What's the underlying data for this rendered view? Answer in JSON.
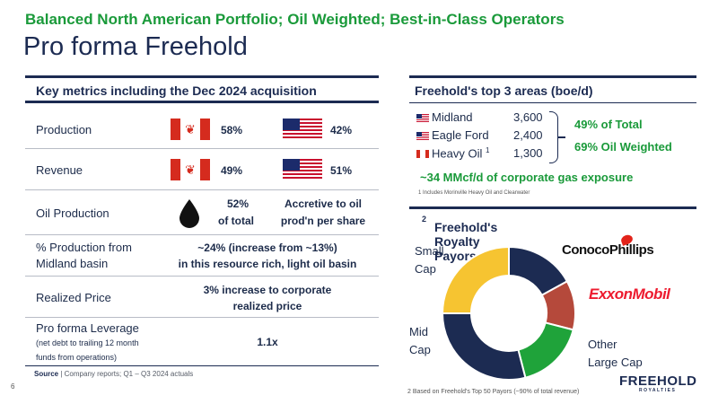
{
  "header": {
    "subtitle": "Balanced North American Portfolio; Oil Weighted; Best-in-Class Operators",
    "title": "Pro forma Freehold"
  },
  "key_metrics": {
    "heading": "Key metrics including the Dec 2024 acquisition",
    "rows": [
      {
        "label": "Production",
        "canada": "58%",
        "us": "42%"
      },
      {
        "label": "Revenue",
        "canada": "49%",
        "us": "51%"
      },
      {
        "label": "Oil Production",
        "value_line1": "52%",
        "value_line2": "of total",
        "note_line1": "Accretive to oil",
        "note_line2": "prod'n per share"
      },
      {
        "label_line1": "% Production from",
        "label_line2": "Midland basin",
        "value_line1": "~24% (increase from ~13%)",
        "value_line2": "in this resource rich, light oil basin"
      },
      {
        "label": "Realized Price",
        "value_line1": "3% increase to corporate",
        "value_line2": "realized price"
      },
      {
        "label_line1": "Pro forma Leverage",
        "label_small1": "(net debt to trailing 12 month",
        "label_small2": "funds from operations)",
        "value": "1.1x"
      }
    ],
    "source_bold": "Source",
    "source_text": " | Company reports; Q1 – Q3 2024 actuals"
  },
  "page_number": "6",
  "top_areas": {
    "heading": "Freehold's top 3 areas (boe/d)",
    "areas": [
      {
        "name": "Midland",
        "value": "3,600",
        "flag": "us"
      },
      {
        "name": "Eagle Ford",
        "value": "2,400",
        "flag": "us"
      },
      {
        "name": "Heavy Oil",
        "sup": "1",
        "value": "1,300",
        "flag": "ca"
      }
    ],
    "pct_total": "49% of Total",
    "oil_weighted": "69% Oil Weighted",
    "gas_exposure": "~34 MMcf/d of corporate gas exposure",
    "footnote": "1 Includes Morinville Heavy Oil and Clearwater"
  },
  "royalty_payors": {
    "heading": "Freehold's Royalty Payors",
    "heading_sup": "2",
    "labels": {
      "small_cap_1": "Small",
      "small_cap_2": "Cap",
      "mid_cap_1": "Mid",
      "mid_cap_2": "Cap",
      "other_1": "Other",
      "other_2": "Large Cap"
    },
    "logos": {
      "conocophillips": "ConocoPhillips",
      "exxonmobil": "ExxonMobil",
      "freehold": "FREEHOLD",
      "freehold_sub": "ROYALTIES"
    },
    "footnote": "2 Based on Freehold's Top 50 Payors (~90% of total revenue)",
    "chart_data": {
      "type": "pie",
      "donut": true,
      "slices": [
        {
          "name": "ConocoPhillips",
          "value": 17,
          "color": "#1c2b52"
        },
        {
          "name": "ExxonMobil",
          "value": 12,
          "color": "#b5493b"
        },
        {
          "name": "Other Large Cap",
          "value": 17,
          "color": "#1fa33a"
        },
        {
          "name": "Mid Cap",
          "value": 29,
          "color": "#1c2b52"
        },
        {
          "name": "Small Cap",
          "value": 25,
          "color": "#f6c431"
        }
      ]
    }
  },
  "colors": {
    "navy": "#1c2b52",
    "green": "#1a9a3a"
  },
  "icons": {
    "oil_drop": "oil-drop-icon",
    "canada_flag": "canada-flag-icon",
    "us_flag": "us-flag-icon"
  }
}
